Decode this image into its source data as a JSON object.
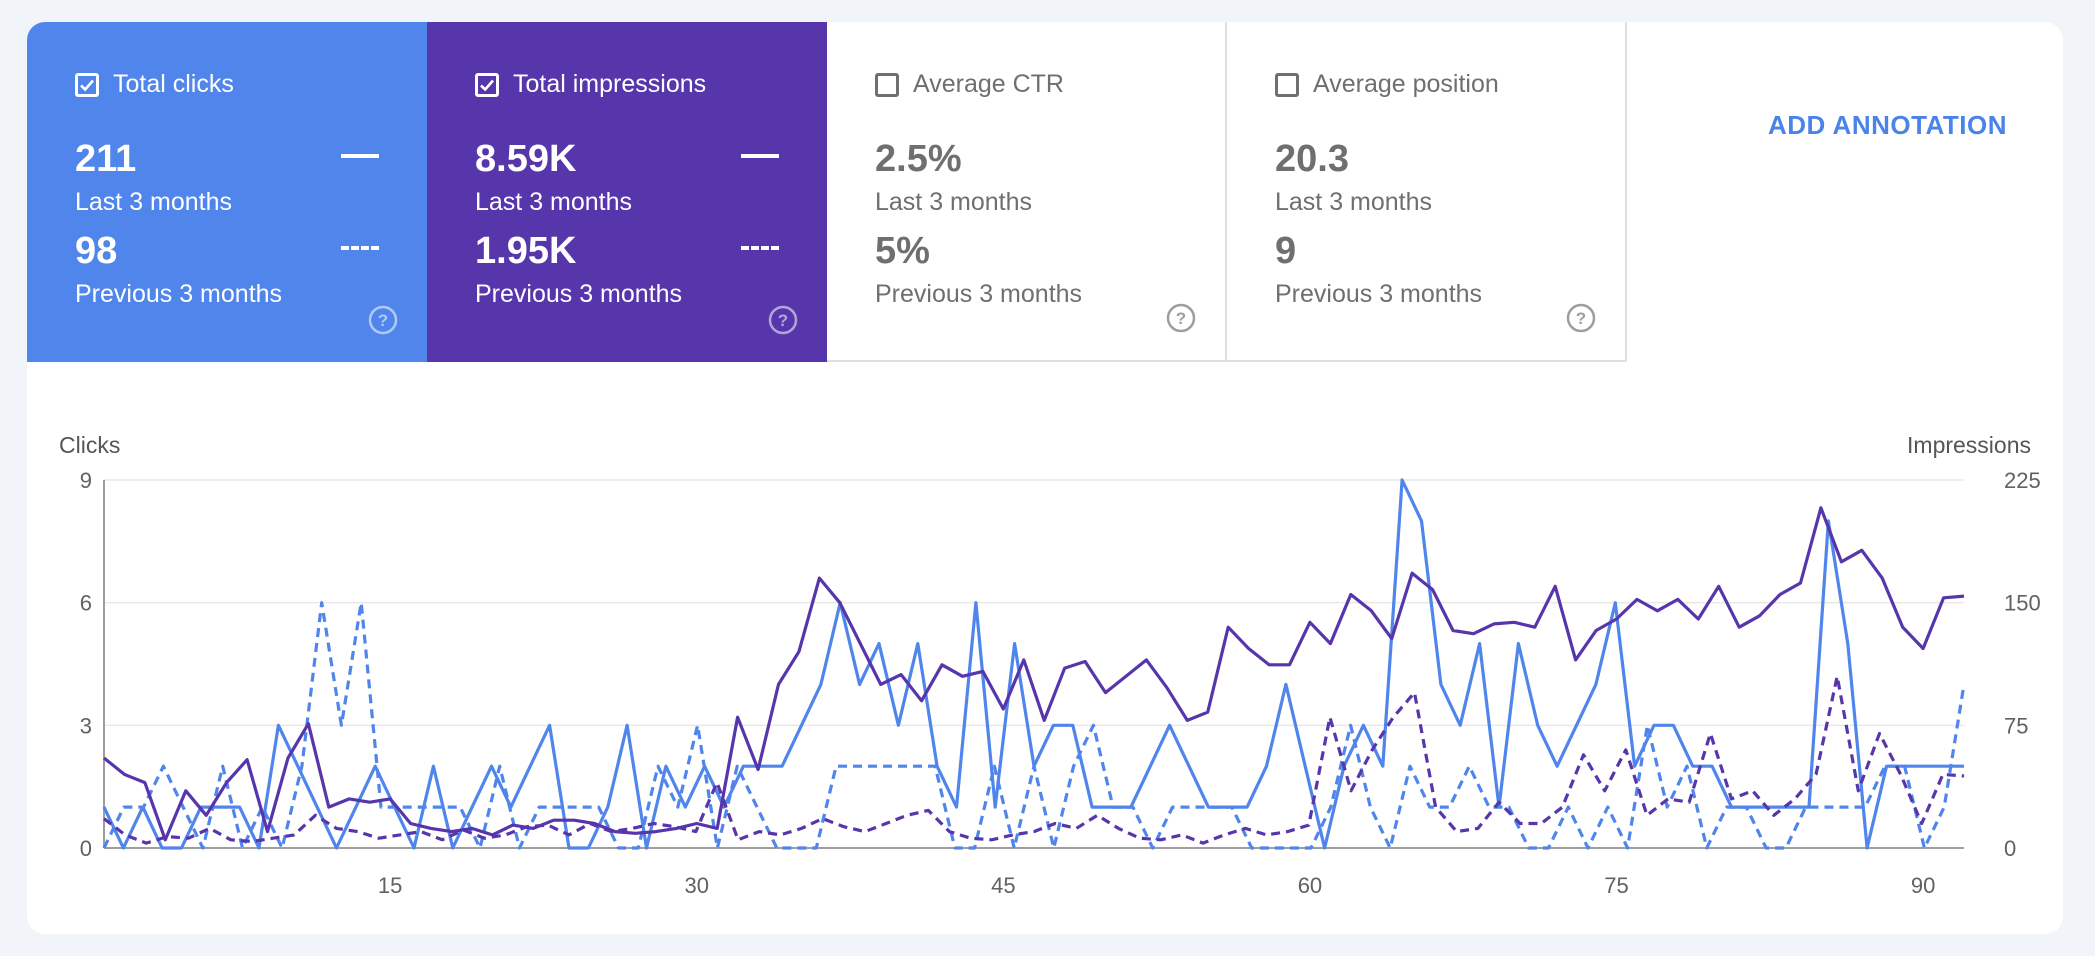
{
  "tiles": [
    {
      "id": "clicks",
      "label": "Total clicks",
      "checked": true,
      "value_current": "211",
      "sub_current": "Last 3 months",
      "value_previous": "98",
      "sub_previous": "Previous 3 months"
    },
    {
      "id": "impr",
      "label": "Total impressions",
      "checked": true,
      "value_current": "8.59K",
      "sub_current": "Last 3 months",
      "value_previous": "1.95K",
      "sub_previous": "Previous 3 months"
    },
    {
      "id": "ctr",
      "label": "Average CTR",
      "checked": false,
      "value_current": "2.5%",
      "sub_current": "Last 3 months",
      "value_previous": "5%",
      "sub_previous": "Previous 3 months"
    },
    {
      "id": "pos",
      "label": "Average position",
      "checked": false,
      "value_current": "20.3",
      "sub_current": "Last 3 months",
      "value_previous": "9",
      "sub_previous": "Previous 3 months"
    }
  ],
  "add_annotation_label": "ADD ANNOTATION",
  "colors": {
    "clicks": "#5085ec",
    "impressions": "#5735ab",
    "grid": "#e8e8e8",
    "axis_text": "#616161"
  },
  "chart_data": {
    "type": "line",
    "xlabel": "",
    "ylabel_left": "Clicks",
    "ylabel_right": "Impressions",
    "x_range": [
      1,
      92
    ],
    "x_ticks": [
      15,
      30,
      45,
      60,
      75,
      90
    ],
    "y_left_range": [
      0,
      9
    ],
    "y_left_ticks": [
      0,
      3,
      6,
      9
    ],
    "y_right_range": [
      0,
      225
    ],
    "y_right_ticks": [
      0,
      75,
      150,
      225
    ],
    "grid": true,
    "legend": "tiles",
    "series": [
      {
        "metric": "clicks",
        "period": "current",
        "axis": "left",
        "style": "solid",
        "values": [
          1,
          0,
          1,
          0,
          0,
          1,
          1,
          1,
          0,
          3,
          2,
          1,
          0,
          1,
          2,
          1,
          0,
          2,
          0,
          1,
          2,
          1,
          2,
          3,
          0,
          0,
          1,
          3,
          0,
          2,
          1,
          2,
          1,
          2,
          2,
          2,
          3,
          4,
          6,
          4,
          5,
          3,
          5,
          2,
          1,
          6,
          1,
          5,
          2,
          3,
          3,
          1,
          1,
          1,
          2,
          3,
          2,
          1,
          1,
          1,
          2,
          4,
          2,
          0,
          2,
          3,
          2,
          9,
          8,
          4,
          3,
          5,
          1,
          5,
          3,
          2,
          3,
          4,
          6,
          2,
          3,
          3,
          2,
          2,
          1,
          1,
          1,
          1,
          1,
          8,
          5,
          0,
          2,
          2,
          2,
          2,
          2
        ]
      },
      {
        "metric": "clicks",
        "period": "previous",
        "axis": "left",
        "style": "dashed",
        "values": [
          0,
          1,
          1,
          2,
          1,
          0,
          2,
          0,
          1,
          0,
          2,
          6,
          3,
          6,
          1,
          1,
          1,
          1,
          1,
          0,
          2,
          0,
          1,
          1,
          1,
          1,
          0,
          0,
          2,
          1,
          3,
          0,
          2,
          1,
          0,
          0,
          0,
          2,
          2,
          2,
          2,
          2,
          2,
          0,
          0,
          2,
          0,
          2,
          0,
          2,
          3,
          1,
          1,
          0,
          1,
          1,
          1,
          1,
          0,
          0,
          0,
          0,
          1,
          3,
          1,
          0,
          2,
          1,
          1,
          2,
          1,
          1,
          0,
          0,
          1,
          0,
          1,
          0,
          3,
          1,
          2,
          0,
          1,
          1,
          0,
          0,
          1,
          1,
          1,
          1,
          2,
          2,
          0,
          1,
          4
        ]
      },
      {
        "metric": "impressions",
        "period": "current",
        "axis": "right",
        "style": "solid",
        "values": [
          55,
          45,
          40,
          5,
          35,
          20,
          40,
          54,
          10,
          55,
          76,
          25,
          30,
          28,
          30,
          15,
          12,
          10,
          12,
          8,
          14,
          12,
          17,
          17,
          15,
          10,
          9,
          10,
          12,
          15,
          12,
          80,
          48,
          100,
          120,
          165,
          150,
          125,
          100,
          106,
          90,
          112,
          105,
          108,
          85,
          115,
          78,
          110,
          114,
          95,
          105,
          115,
          98,
          78,
          83,
          135,
          122,
          112,
          112,
          138,
          125,
          155,
          145,
          128,
          168,
          158,
          133,
          131,
          137,
          138,
          135,
          160,
          115,
          133,
          140,
          152,
          145,
          152,
          140,
          160,
          135,
          142,
          155,
          162,
          208,
          175,
          182,
          165,
          135,
          122,
          153,
          154
        ]
      },
      {
        "metric": "impressions",
        "period": "previous",
        "axis": "right",
        "style": "dashed",
        "values": [
          18,
          8,
          3,
          7,
          6,
          12,
          5,
          4,
          6,
          8,
          20,
          12,
          10,
          6,
          8,
          10,
          5,
          11,
          6,
          8,
          13,
          14,
          8,
          15,
          10,
          12,
          15,
          13,
          10,
          40,
          5,
          10,
          8,
          12,
          18,
          13,
          10,
          15,
          20,
          23,
          10,
          6,
          5,
          8,
          10,
          15,
          12,
          20,
          12,
          6,
          5,
          8,
          3,
          8,
          12,
          8,
          10,
          14,
          80,
          35,
          60,
          80,
          95,
          25,
          10,
          12,
          28,
          15,
          15,
          25,
          57,
          35,
          60,
          20,
          30,
          28,
          70,
          30,
          35,
          20,
          30,
          45,
          105,
          35,
          70,
          45,
          15,
          45,
          44
        ]
      }
    ]
  }
}
